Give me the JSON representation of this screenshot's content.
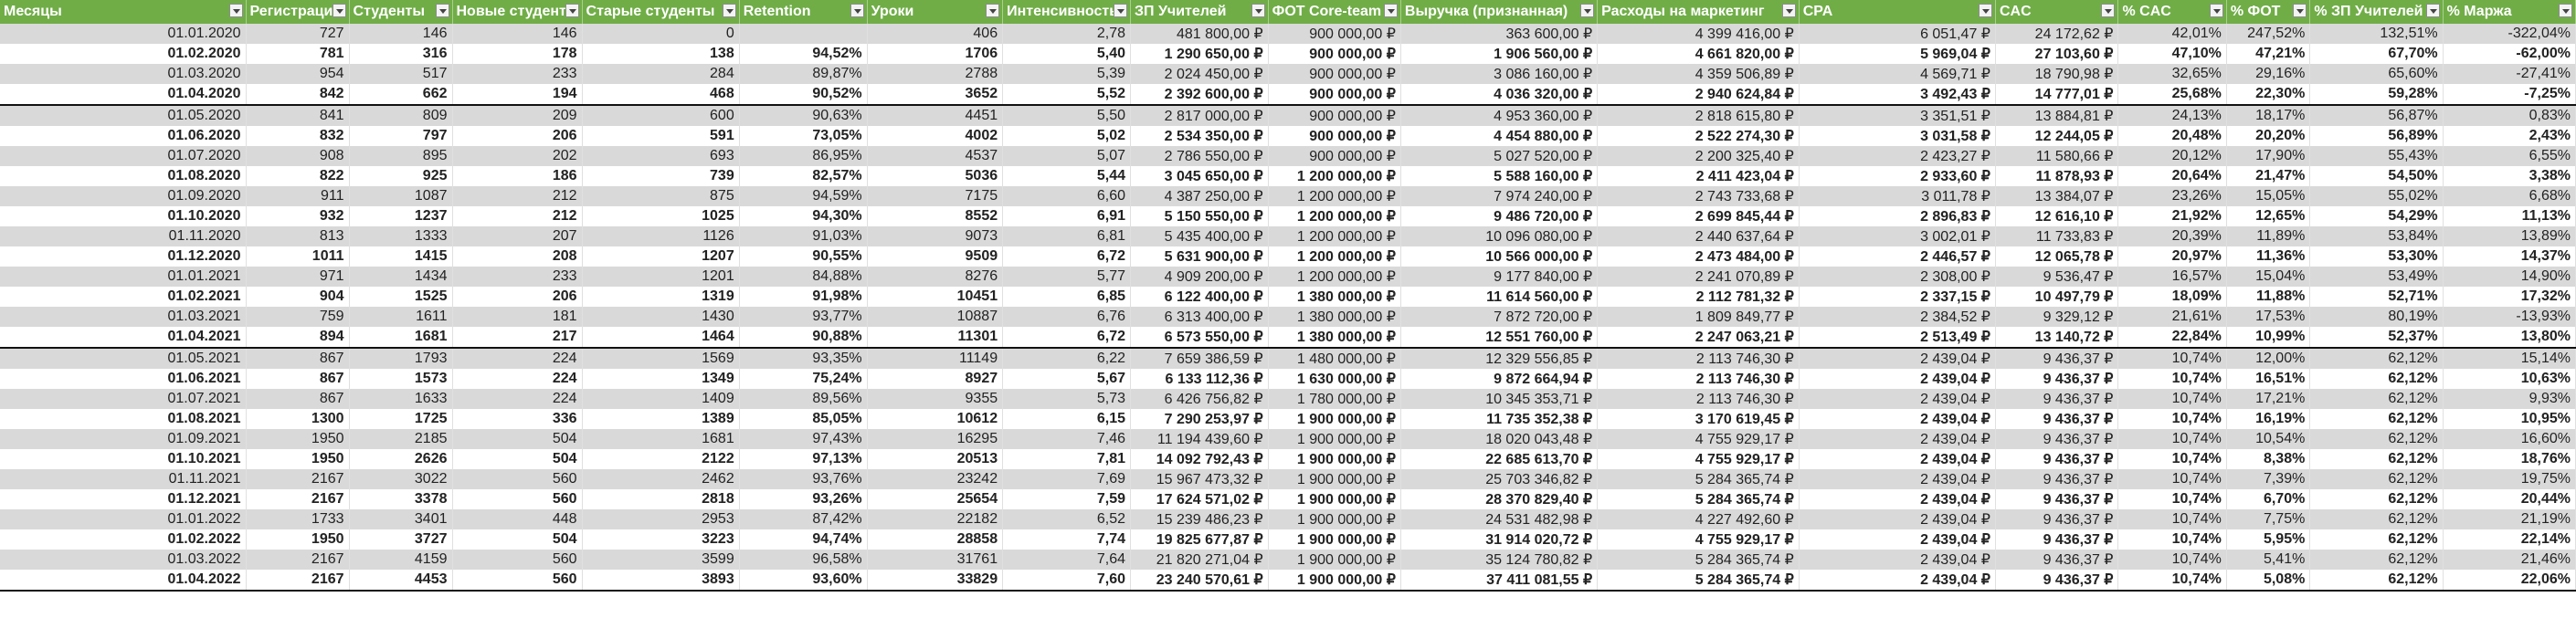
{
  "sheet": {
    "columns": [
      "Месяцы",
      "Регистрации",
      "Студенты",
      "Новые студенты",
      "Старые студенты",
      "Retention",
      "Уроки",
      "Интенсивность",
      "ЗП Учителей",
      "ФОТ Core-team",
      "Выручка (признанная)",
      "Расходы на маркетинг",
      "CPA",
      "CAC",
      "% CAC",
      "% ФОТ",
      "% ЗП Учителей",
      "% Маржа"
    ],
    "rows": [
      {
        "bold": false,
        "quarter_end": false,
        "cells": [
          "01.01.2020",
          "727",
          "146",
          "146",
          "0",
          "",
          "406",
          "2,78",
          "481 800,00 ₽",
          "900 000,00 ₽",
          "363 600,00 ₽",
          "4 399 416,00 ₽",
          "6 051,47 ₽",
          "24 172,62 ₽",
          "42,01%",
          "247,52%",
          "132,51%",
          "-322,04%"
        ]
      },
      {
        "bold": true,
        "quarter_end": false,
        "cells": [
          "01.02.2020",
          "781",
          "316",
          "178",
          "138",
          "94,52%",
          "1706",
          "5,40",
          "1 290 650,00 ₽",
          "900 000,00 ₽",
          "1 906 560,00 ₽",
          "4 661 820,00 ₽",
          "5 969,04 ₽",
          "27 103,60 ₽",
          "47,10%",
          "47,21%",
          "67,70%",
          "-62,00%"
        ]
      },
      {
        "bold": false,
        "quarter_end": false,
        "cells": [
          "01.03.2020",
          "954",
          "517",
          "233",
          "284",
          "89,87%",
          "2788",
          "5,39",
          "2 024 450,00 ₽",
          "900 000,00 ₽",
          "3 086 160,00 ₽",
          "4 359 506,89 ₽",
          "4 569,71 ₽",
          "18 790,98 ₽",
          "32,65%",
          "29,16%",
          "65,60%",
          "-27,41%"
        ]
      },
      {
        "bold": true,
        "quarter_end": true,
        "cells": [
          "01.04.2020",
          "842",
          "662",
          "194",
          "468",
          "90,52%",
          "3652",
          "5,52",
          "2 392 600,00 ₽",
          "900 000,00 ₽",
          "4 036 320,00 ₽",
          "2 940 624,84 ₽",
          "3 492,43 ₽",
          "14 777,01 ₽",
          "25,68%",
          "22,30%",
          "59,28%",
          "-7,25%"
        ]
      },
      {
        "bold": false,
        "quarter_end": false,
        "cells": [
          "01.05.2020",
          "841",
          "809",
          "209",
          "600",
          "90,63%",
          "4451",
          "5,50",
          "2 817 000,00 ₽",
          "900 000,00 ₽",
          "4 953 360,00 ₽",
          "2 818 615,80 ₽",
          "3 351,51 ₽",
          "13 884,81 ₽",
          "24,13%",
          "18,17%",
          "56,87%",
          "0,83%"
        ]
      },
      {
        "bold": true,
        "quarter_end": false,
        "cells": [
          "01.06.2020",
          "832",
          "797",
          "206",
          "591",
          "73,05%",
          "4002",
          "5,02",
          "2 534 350,00 ₽",
          "900 000,00 ₽",
          "4 454 880,00 ₽",
          "2 522 274,30 ₽",
          "3 031,58 ₽",
          "12 244,05 ₽",
          "20,48%",
          "20,20%",
          "56,89%",
          "2,43%"
        ]
      },
      {
        "bold": false,
        "quarter_end": false,
        "cells": [
          "01.07.2020",
          "908",
          "895",
          "202",
          "693",
          "86,95%",
          "4537",
          "5,07",
          "2 786 550,00 ₽",
          "900 000,00 ₽",
          "5 027 520,00 ₽",
          "2 200 325,40 ₽",
          "2 423,27 ₽",
          "11 580,66 ₽",
          "20,12%",
          "17,90%",
          "55,43%",
          "6,55%"
        ]
      },
      {
        "bold": true,
        "quarter_end": false,
        "cells": [
          "01.08.2020",
          "822",
          "925",
          "186",
          "739",
          "82,57%",
          "5036",
          "5,44",
          "3 045 650,00 ₽",
          "1 200 000,00 ₽",
          "5 588 160,00 ₽",
          "2 411 423,04 ₽",
          "2 933,60 ₽",
          "11 878,93 ₽",
          "20,64%",
          "21,47%",
          "54,50%",
          "3,38%"
        ]
      },
      {
        "bold": false,
        "quarter_end": false,
        "cells": [
          "01.09.2020",
          "911",
          "1087",
          "212",
          "875",
          "94,59%",
          "7175",
          "6,60",
          "4 387 250,00 ₽",
          "1 200 000,00 ₽",
          "7 974 240,00 ₽",
          "2 743 733,68 ₽",
          "3 011,78 ₽",
          "13 384,07 ₽",
          "23,26%",
          "15,05%",
          "55,02%",
          "6,68%"
        ]
      },
      {
        "bold": true,
        "quarter_end": false,
        "cells": [
          "01.10.2020",
          "932",
          "1237",
          "212",
          "1025",
          "94,30%",
          "8552",
          "6,91",
          "5 150 550,00 ₽",
          "1 200 000,00 ₽",
          "9 486 720,00 ₽",
          "2 699 845,44 ₽",
          "2 896,83 ₽",
          "12 616,10 ₽",
          "21,92%",
          "12,65%",
          "54,29%",
          "11,13%"
        ]
      },
      {
        "bold": false,
        "quarter_end": false,
        "cells": [
          "01.11.2020",
          "813",
          "1333",
          "207",
          "1126",
          "91,03%",
          "9073",
          "6,81",
          "5 435 400,00 ₽",
          "1 200 000,00 ₽",
          "10 096 080,00 ₽",
          "2 440 637,64 ₽",
          "3 002,01 ₽",
          "11 733,83 ₽",
          "20,39%",
          "11,89%",
          "53,84%",
          "13,89%"
        ]
      },
      {
        "bold": true,
        "quarter_end": false,
        "cells": [
          "01.12.2020",
          "1011",
          "1415",
          "208",
          "1207",
          "90,55%",
          "9509",
          "6,72",
          "5 631 900,00 ₽",
          "1 200 000,00 ₽",
          "10 566 000,00 ₽",
          "2 473 484,00 ₽",
          "2 446,57 ₽",
          "12 065,78 ₽",
          "20,97%",
          "11,36%",
          "53,30%",
          "14,37%"
        ]
      },
      {
        "bold": false,
        "quarter_end": false,
        "cells": [
          "01.01.2021",
          "971",
          "1434",
          "233",
          "1201",
          "84,88%",
          "8276",
          "5,77",
          "4 909 200,00 ₽",
          "1 200 000,00 ₽",
          "9 177 840,00 ₽",
          "2 241 070,89 ₽",
          "2 308,00 ₽",
          "9 536,47 ₽",
          "16,57%",
          "15,04%",
          "53,49%",
          "14,90%"
        ]
      },
      {
        "bold": true,
        "quarter_end": false,
        "cells": [
          "01.02.2021",
          "904",
          "1525",
          "206",
          "1319",
          "91,98%",
          "10451",
          "6,85",
          "6 122 400,00 ₽",
          "1 380 000,00 ₽",
          "11 614 560,00 ₽",
          "2 112 781,32 ₽",
          "2 337,15 ₽",
          "10 497,79 ₽",
          "18,09%",
          "11,88%",
          "52,71%",
          "17,32%"
        ]
      },
      {
        "bold": false,
        "quarter_end": false,
        "cells": [
          "01.03.2021",
          "759",
          "1611",
          "181",
          "1430",
          "93,77%",
          "10887",
          "6,76",
          "6 313 400,00 ₽",
          "1 380 000,00 ₽",
          "7 872 720,00 ₽",
          "1 809 849,77 ₽",
          "2 384,52 ₽",
          "9 329,12 ₽",
          "21,61%",
          "17,53%",
          "80,19%",
          "-13,93%"
        ]
      },
      {
        "bold": true,
        "quarter_end": true,
        "cells": [
          "01.04.2021",
          "894",
          "1681",
          "217",
          "1464",
          "90,88%",
          "11301",
          "6,72",
          "6 573 550,00 ₽",
          "1 380 000,00 ₽",
          "12 551 760,00 ₽",
          "2 247 063,21 ₽",
          "2 513,49 ₽",
          "13 140,72 ₽",
          "22,84%",
          "10,99%",
          "52,37%",
          "13,80%"
        ]
      },
      {
        "bold": false,
        "quarter_end": false,
        "cells": [
          "01.05.2021",
          "867",
          "1793",
          "224",
          "1569",
          "93,35%",
          "11149",
          "6,22",
          "7 659 386,59 ₽",
          "1 480 000,00 ₽",
          "12 329 556,85 ₽",
          "2 113 746,30 ₽",
          "2 439,04 ₽",
          "9 436,37 ₽",
          "10,74%",
          "12,00%",
          "62,12%",
          "15,14%"
        ]
      },
      {
        "bold": true,
        "quarter_end": false,
        "cells": [
          "01.06.2021",
          "867",
          "1573",
          "224",
          "1349",
          "75,24%",
          "8927",
          "5,67",
          "6 133 112,36 ₽",
          "1 630 000,00 ₽",
          "9 872 664,94 ₽",
          "2 113 746,30 ₽",
          "2 439,04 ₽",
          "9 436,37 ₽",
          "10,74%",
          "16,51%",
          "62,12%",
          "10,63%"
        ]
      },
      {
        "bold": false,
        "quarter_end": false,
        "cells": [
          "01.07.2021",
          "867",
          "1633",
          "224",
          "1409",
          "89,56%",
          "9355",
          "5,73",
          "6 426 756,82 ₽",
          "1 780 000,00 ₽",
          "10 345 353,71 ₽",
          "2 113 746,30 ₽",
          "2 439,04 ₽",
          "9 436,37 ₽",
          "10,74%",
          "17,21%",
          "62,12%",
          "9,93%"
        ]
      },
      {
        "bold": true,
        "quarter_end": false,
        "cells": [
          "01.08.2021",
          "1300",
          "1725",
          "336",
          "1389",
          "85,05%",
          "10612",
          "6,15",
          "7 290 253,97 ₽",
          "1 900 000,00 ₽",
          "11 735 352,38 ₽",
          "3 170 619,45 ₽",
          "2 439,04 ₽",
          "9 436,37 ₽",
          "10,74%",
          "16,19%",
          "62,12%",
          "10,95%"
        ]
      },
      {
        "bold": false,
        "quarter_end": false,
        "cells": [
          "01.09.2021",
          "1950",
          "2185",
          "504",
          "1681",
          "97,43%",
          "16295",
          "7,46",
          "11 194 439,60 ₽",
          "1 900 000,00 ₽",
          "18 020 043,48 ₽",
          "4 755 929,17 ₽",
          "2 439,04 ₽",
          "9 436,37 ₽",
          "10,74%",
          "10,54%",
          "62,12%",
          "16,60%"
        ]
      },
      {
        "bold": true,
        "quarter_end": false,
        "cells": [
          "01.10.2021",
          "1950",
          "2626",
          "504",
          "2122",
          "97,13%",
          "20513",
          "7,81",
          "14 092 792,43 ₽",
          "1 900 000,00 ₽",
          "22 685 613,70 ₽",
          "4 755 929,17 ₽",
          "2 439,04 ₽",
          "9 436,37 ₽",
          "10,74%",
          "8,38%",
          "62,12%",
          "18,76%"
        ]
      },
      {
        "bold": false,
        "quarter_end": false,
        "cells": [
          "01.11.2021",
          "2167",
          "3022",
          "560",
          "2462",
          "93,76%",
          "23242",
          "7,69",
          "15 967 473,32 ₽",
          "1 900 000,00 ₽",
          "25 703 346,82 ₽",
          "5 284 365,74 ₽",
          "2 439,04 ₽",
          "9 436,37 ₽",
          "10,74%",
          "7,39%",
          "62,12%",
          "19,75%"
        ]
      },
      {
        "bold": true,
        "quarter_end": false,
        "cells": [
          "01.12.2021",
          "2167",
          "3378",
          "560",
          "2818",
          "93,26%",
          "25654",
          "7,59",
          "17 624 571,02 ₽",
          "1 900 000,00 ₽",
          "28 370 829,40 ₽",
          "5 284 365,74 ₽",
          "2 439,04 ₽",
          "9 436,37 ₽",
          "10,74%",
          "6,70%",
          "62,12%",
          "20,44%"
        ]
      },
      {
        "bold": false,
        "quarter_end": false,
        "cells": [
          "01.01.2022",
          "1733",
          "3401",
          "448",
          "2953",
          "87,42%",
          "22182",
          "6,52",
          "15 239 486,23 ₽",
          "1 900 000,00 ₽",
          "24 531 482,98 ₽",
          "4 227 492,60 ₽",
          "2 439,04 ₽",
          "9 436,37 ₽",
          "10,74%",
          "7,75%",
          "62,12%",
          "21,19%"
        ]
      },
      {
        "bold": true,
        "quarter_end": false,
        "cells": [
          "01.02.2022",
          "1950",
          "3727",
          "504",
          "3223",
          "94,74%",
          "28858",
          "7,74",
          "19 825 677,87 ₽",
          "1 900 000,00 ₽",
          "31 914 020,72 ₽",
          "4 755 929,17 ₽",
          "2 439,04 ₽",
          "9 436,37 ₽",
          "10,74%",
          "5,95%",
          "62,12%",
          "22,14%"
        ]
      },
      {
        "bold": false,
        "quarter_end": false,
        "cells": [
          "01.03.2022",
          "2167",
          "4159",
          "560",
          "3599",
          "96,58%",
          "31761",
          "7,64",
          "21 820 271,04 ₽",
          "1 900 000,00 ₽",
          "35 124 780,82 ₽",
          "5 284 365,74 ₽",
          "2 439,04 ₽",
          "9 436,37 ₽",
          "10,74%",
          "5,41%",
          "62,12%",
          "21,46%"
        ]
      },
      {
        "bold": true,
        "quarter_end": true,
        "cells": [
          "01.04.2022",
          "2167",
          "4453",
          "560",
          "3893",
          "93,60%",
          "33829",
          "7,60",
          "23 240 570,61 ₽",
          "1 900 000,00 ₽",
          "37 411 081,55 ₽",
          "5 284 365,74 ₽",
          "2 439,04 ₽",
          "9 436,37 ₽",
          "10,74%",
          "5,08%",
          "62,12%",
          "22,06%"
        ]
      }
    ]
  }
}
